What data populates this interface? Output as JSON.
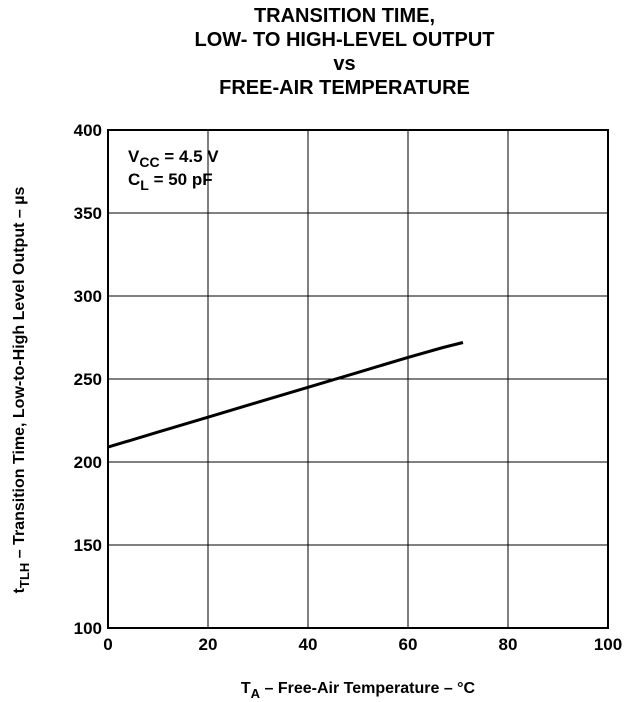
{
  "chart_data": {
    "type": "line",
    "title_lines": [
      "TRANSITION TIME,",
      "LOW- TO HIGH-LEVEL OUTPUT",
      "vs",
      "FREE-AIR TEMPERATURE"
    ],
    "xlabel": {
      "main": "T",
      "sub": "A",
      "rest": " – Free-Air Temperature – °C"
    },
    "ylabel": {
      "main": "t",
      "sub": "TLH",
      "rest": "  – Transition Time, Low-to-High Level  Output – µs"
    },
    "xlim": [
      0,
      100
    ],
    "ylim": [
      100,
      400
    ],
    "xticks": [
      0,
      20,
      40,
      60,
      80,
      100
    ],
    "yticks": [
      100,
      150,
      200,
      250,
      300,
      350,
      400
    ],
    "grid": true,
    "annotations": [
      {
        "main": "V",
        "sub": "CC",
        "rest": " = 4.5 V"
      },
      {
        "main": "C",
        "sub": "L",
        "rest": " = 50 pF"
      }
    ],
    "series": [
      {
        "x": [
          0,
          10,
          20,
          30,
          40,
          50,
          60,
          67,
          71
        ],
        "y": [
          209,
          218,
          227,
          236,
          245,
          254,
          263,
          269,
          272
        ]
      }
    ]
  }
}
